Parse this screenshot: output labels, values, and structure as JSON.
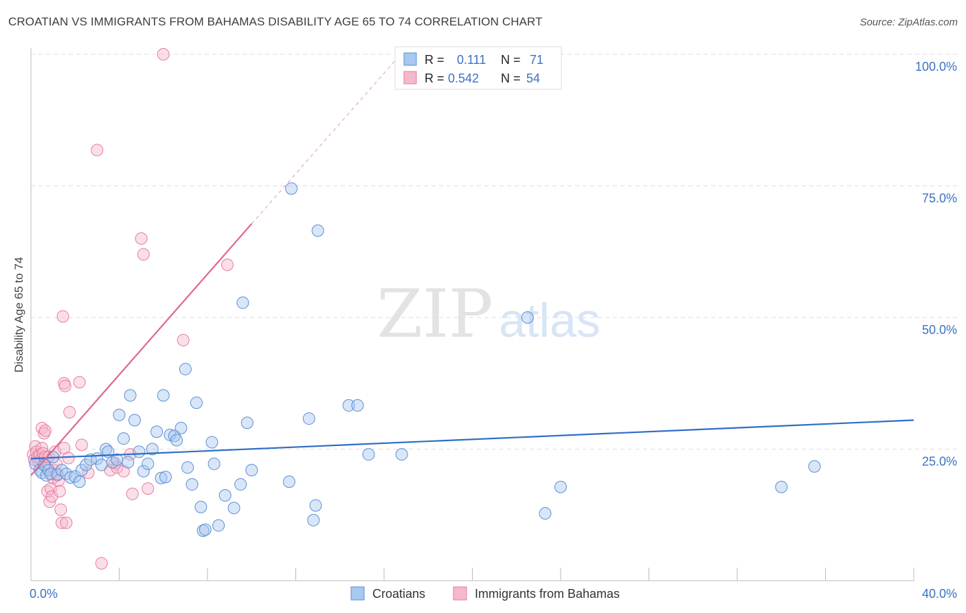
{
  "header": {
    "title": "CROATIAN VS IMMIGRANTS FROM BAHAMAS DISABILITY AGE 65 TO 74 CORRELATION CHART",
    "source": "Source: ZipAtlas.com"
  },
  "watermark": {
    "zip": "ZIP",
    "atlas": "atlas"
  },
  "colors": {
    "blue_fill": "#a8c8f0",
    "blue_stroke": "#5b8fd6",
    "blue_line": "#2e6ec8",
    "pink_fill": "#f6b8cb",
    "pink_stroke": "#e57da0",
    "pink_line": "#e0668f",
    "value_text": "#3a72c4",
    "grid": "#dddddd"
  },
  "chart_data": {
    "type": "scatter",
    "title": "CROATIAN VS IMMIGRANTS FROM BAHAMAS DISABILITY AGE 65 TO 74 CORRELATION CHART",
    "xlabel": "",
    "ylabel": "Disability Age 65 to 74",
    "xlim": [
      0,
      40
    ],
    "ylim": [
      0,
      100
    ],
    "x_tick_labels": [
      "0.0%",
      "40.0%"
    ],
    "y_tick_labels": [
      "25.0%",
      "50.0%",
      "75.0%",
      "100.0%"
    ],
    "y_ticks": [
      25,
      50,
      75,
      100
    ],
    "grid": true,
    "legend_position": "bottom",
    "stats": [
      {
        "r_label": "R =",
        "r_value": "0.111",
        "n_label": "N =",
        "n_value": "71"
      },
      {
        "r_label": "R =",
        "r_value": "0.542",
        "n_label": "N =",
        "n_value": "54"
      }
    ],
    "series": [
      {
        "name": "Croatians",
        "color": "blue",
        "trend": {
          "x": [
            0,
            40
          ],
          "y": [
            23.2,
            30.5
          ]
        },
        "points": [
          [
            0.2,
            22.2
          ],
          [
            0.4,
            21.0
          ],
          [
            0.5,
            20.5
          ],
          [
            0.6,
            22.0
          ],
          [
            0.7,
            20.0
          ],
          [
            0.8,
            21.0
          ],
          [
            0.9,
            20.3
          ],
          [
            1.0,
            23.5
          ],
          [
            1.2,
            20.2
          ],
          [
            1.4,
            21.0
          ],
          [
            1.6,
            20.3
          ],
          [
            1.8,
            19.6
          ],
          [
            2.0,
            19.8
          ],
          [
            2.2,
            18.8
          ],
          [
            2.3,
            21.0
          ],
          [
            2.5,
            22.0
          ],
          [
            2.7,
            23.0
          ],
          [
            3.0,
            23.2
          ],
          [
            3.2,
            22.0
          ],
          [
            3.4,
            25.0
          ],
          [
            3.5,
            24.5
          ],
          [
            3.7,
            22.5
          ],
          [
            3.9,
            23.0
          ],
          [
            4.0,
            31.5
          ],
          [
            4.2,
            27.0
          ],
          [
            4.4,
            22.5
          ],
          [
            4.5,
            35.2
          ],
          [
            4.7,
            30.5
          ],
          [
            4.9,
            24.5
          ],
          [
            5.1,
            20.8
          ],
          [
            5.3,
            22.2
          ],
          [
            5.5,
            25.0
          ],
          [
            5.7,
            28.3
          ],
          [
            5.9,
            19.5
          ],
          [
            6.1,
            19.7
          ],
          [
            6.0,
            35.2
          ],
          [
            6.3,
            27.7
          ],
          [
            6.5,
            27.5
          ],
          [
            6.6,
            26.7
          ],
          [
            6.8,
            29.0
          ],
          [
            7.0,
            40.2
          ],
          [
            7.1,
            21.5
          ],
          [
            7.3,
            18.3
          ],
          [
            7.5,
            33.8
          ],
          [
            7.7,
            14.0
          ],
          [
            7.8,
            9.5
          ],
          [
            7.9,
            9.7
          ],
          [
            8.2,
            26.3
          ],
          [
            8.3,
            22.2
          ],
          [
            8.5,
            10.5
          ],
          [
            8.8,
            16.2
          ],
          [
            9.2,
            13.8
          ],
          [
            9.5,
            18.3
          ],
          [
            9.6,
            52.8
          ],
          [
            9.8,
            30.0
          ],
          [
            10.0,
            21.0
          ],
          [
            11.8,
            74.5
          ],
          [
            11.7,
            18.8
          ],
          [
            12.6,
            30.8
          ],
          [
            12.8,
            11.5
          ],
          [
            12.9,
            14.3
          ],
          [
            13.0,
            66.5
          ],
          [
            14.4,
            33.3
          ],
          [
            14.8,
            33.3
          ],
          [
            15.3,
            24.0
          ],
          [
            16.8,
            24.0
          ],
          [
            22.5,
            50.0
          ],
          [
            23.3,
            12.8
          ],
          [
            24.0,
            17.8
          ],
          [
            34.0,
            17.8
          ],
          [
            35.5,
            21.7
          ]
        ]
      },
      {
        "name": "Immigrants from Bahamas",
        "color": "pink",
        "trend": {
          "x": [
            0,
            10.0
          ],
          "y": [
            20.0,
            67.8
          ]
        },
        "trend_dashed": {
          "x": [
            10.0,
            16.9
          ],
          "y": [
            67.8,
            100.7
          ]
        },
        "points": [
          [
            0.1,
            24.0
          ],
          [
            0.15,
            23.0
          ],
          [
            0.2,
            25.5
          ],
          [
            0.25,
            24.5
          ],
          [
            0.3,
            23.5
          ],
          [
            0.35,
            22.5
          ],
          [
            0.4,
            24.0
          ],
          [
            0.45,
            23.0
          ],
          [
            0.5,
            25.2
          ],
          [
            0.55,
            24.2
          ],
          [
            0.6,
            22.0
          ],
          [
            0.65,
            23.5
          ],
          [
            0.7,
            21.5
          ],
          [
            0.5,
            29.0
          ],
          [
            0.6,
            28.0
          ],
          [
            0.65,
            28.5
          ],
          [
            0.75,
            17.0
          ],
          [
            0.8,
            23.5
          ],
          [
            0.85,
            15.0
          ],
          [
            0.9,
            17.5
          ],
          [
            0.95,
            16.0
          ],
          [
            1.0,
            19.5
          ],
          [
            1.05,
            21.0
          ],
          [
            1.1,
            24.5
          ],
          [
            1.15,
            22.2
          ],
          [
            1.2,
            20.0
          ],
          [
            1.25,
            19.0
          ],
          [
            1.3,
            17.0
          ],
          [
            1.35,
            13.5
          ],
          [
            1.4,
            11.0
          ],
          [
            1.45,
            50.2
          ],
          [
            1.5,
            25.2
          ],
          [
            1.5,
            37.5
          ],
          [
            1.55,
            37.0
          ],
          [
            1.6,
            11.0
          ],
          [
            1.7,
            23.3
          ],
          [
            1.75,
            32.0
          ],
          [
            2.2,
            37.7
          ],
          [
            2.3,
            25.8
          ],
          [
            3.2,
            3.3
          ],
          [
            3.0,
            81.8
          ],
          [
            3.6,
            21.0
          ],
          [
            3.8,
            22.3
          ],
          [
            3.9,
            21.5
          ],
          [
            4.2,
            20.8
          ],
          [
            4.5,
            24.0
          ],
          [
            4.6,
            16.5
          ],
          [
            5.0,
            65.0
          ],
          [
            5.1,
            62.0
          ],
          [
            5.3,
            17.5
          ],
          [
            6.0,
            100.0
          ],
          [
            6.9,
            45.7
          ],
          [
            8.9,
            60.0
          ],
          [
            2.6,
            20.5
          ]
        ]
      }
    ]
  }
}
